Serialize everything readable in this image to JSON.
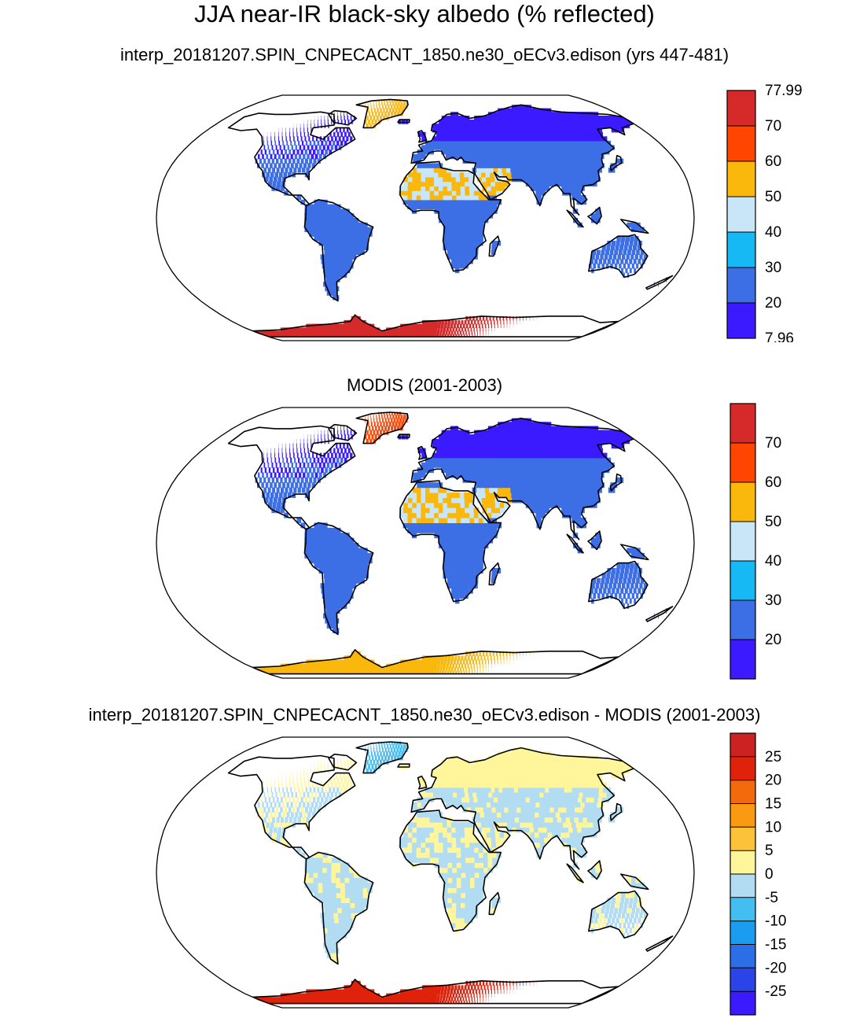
{
  "title": "JJA near-IR black-sky albedo (% reflected)",
  "panels": [
    {
      "title": "interp_20181207.SPIN_CNPECACNT_1850.ne30_oECv3.edison (yrs 447-481)",
      "colorbar": {
        "labels": [
          "77.99",
          "70",
          "60",
          "50",
          "40",
          "30",
          "20",
          "7.96"
        ],
        "colors": [
          "#3b1aff",
          "#3c6ee6",
          "#17b9f5",
          "#c8e6f7",
          "#fbb80c",
          "#ff4500",
          "#d62a2a"
        ]
      },
      "land_color": "#3c6ee6",
      "boreal_color": "#3b1aff",
      "desert_color": "#c8e6f7",
      "desert_accent": "#fbb80c",
      "greenland_color": "#fbb80c",
      "antarctica_color": "#d62a2a"
    },
    {
      "title": "MODIS (2001-2003)",
      "colorbar": {
        "labels": [
          "70",
          "60",
          "50",
          "40",
          "30",
          "20"
        ],
        "colors": [
          "#3b1aff",
          "#3c6ee6",
          "#17b9f5",
          "#c8e6f7",
          "#fbb80c",
          "#ff4500",
          "#d62a2a"
        ]
      },
      "land_color": "#3c6ee6",
      "boreal_color": "#3b1aff",
      "desert_color": "#fbb80c",
      "desert_accent": "#c8e6f7",
      "greenland_color": "#ff4500",
      "antarctica_color": "#fbb80c"
    },
    {
      "title": "interp_20181207.SPIN_CNPECACNT_1850.ne30_oECv3.edison - MODIS (2001-2003)",
      "colorbar": {
        "labels": [
          "25",
          "20",
          "15",
          "10",
          "5",
          "0",
          "-5",
          "-10",
          "-15",
          "-20",
          "-25"
        ],
        "colors": [
          "#3b1aff",
          "#2a44e8",
          "#2b6ee6",
          "#1a9cf0",
          "#44bef0",
          "#b2dcf2",
          "#fff59a",
          "#fcc23a",
          "#fa9a12",
          "#f36a0c",
          "#e0220a",
          "#cc2222"
        ]
      },
      "land_color": "#b2dcf2",
      "boreal_color": "#fff59a",
      "desert_color": "#b2dcf2",
      "desert_accent": "#fff59a",
      "greenland_color": "#44bef0",
      "antarctica_color": "#e0220a"
    }
  ]
}
